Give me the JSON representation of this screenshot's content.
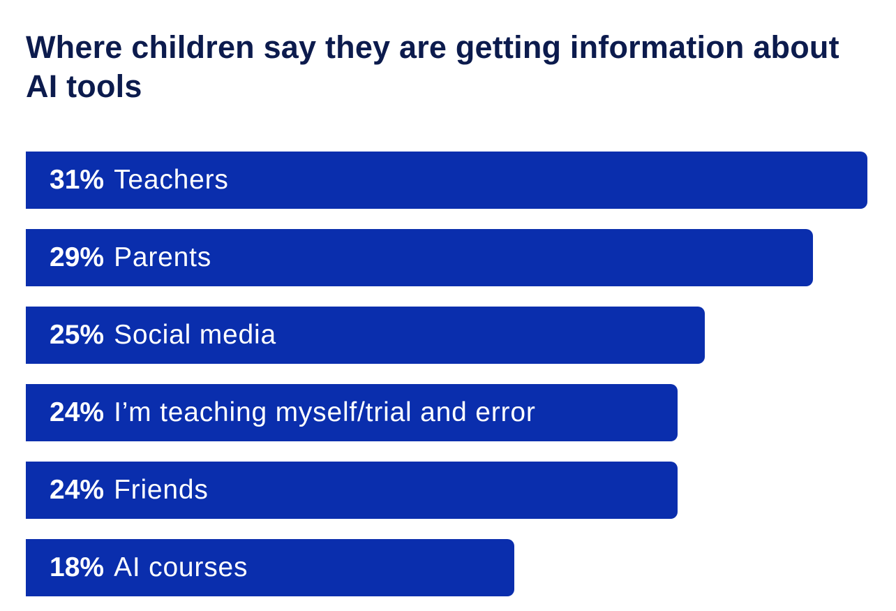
{
  "chart_data": {
    "type": "bar",
    "orientation": "horizontal",
    "title": "Where children say they are getting information about AI tools",
    "categories": [
      "Teachers",
      "Parents",
      "Social media",
      "I’m teaching myself/trial and error",
      "Friends",
      "AI courses"
    ],
    "values": [
      31,
      29,
      25,
      24,
      24,
      18
    ],
    "value_labels": [
      "31%",
      "29%",
      "25%",
      "24%",
      "24%",
      "18%"
    ],
    "xlim": [
      0,
      31
    ],
    "grid": false,
    "legend": "none",
    "bar_color": "#0a2ead",
    "title_color": "#0c1b4d",
    "label_color": "#ffffff"
  }
}
